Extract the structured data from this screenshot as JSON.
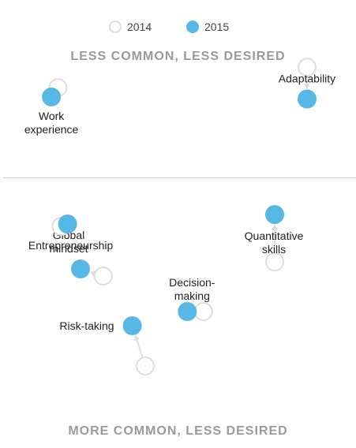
{
  "colors": {
    "y2014_stroke": "#dddddd",
    "y2015_fill": "#57b8e6",
    "connector": "#dddddd"
  },
  "legend": {
    "items": [
      {
        "label": "2014"
      },
      {
        "label": "2015"
      }
    ]
  },
  "sections": {
    "top": "LESS COMMON, LESS DESIRED",
    "bottom": "MORE COMMON, LESS DESIRED"
  },
  "chart_data": {
    "type": "scatter",
    "series_names": [
      "2014",
      "2015"
    ],
    "points": [
      {
        "label": [
          "Work",
          "experience"
        ],
        "quadrant": "less common, less desired",
        "y2014": [
          0.13,
          0.24
        ],
        "y2015": [
          0.11,
          0.33
        ]
      },
      {
        "label": [
          "Adaptability"
        ],
        "quadrant": "less common, less desired",
        "y2014": [
          0.9,
          0.04
        ],
        "y2015": [
          0.9,
          0.35
        ]
      },
      {
        "label": [
          "Risk-taking"
        ],
        "quadrant": "more common, less desired",
        "y2014": [
          0.4,
          0.78
        ],
        "y2015": [
          0.36,
          0.61
        ]
      },
      {
        "label": [
          "Decision-",
          "making"
        ],
        "quadrant": "more common, less desired",
        "y2014": [
          0.58,
          0.55
        ],
        "y2015": [
          0.53,
          0.55
        ]
      },
      {
        "label": [
          "Global",
          "mindset"
        ],
        "quadrant": "more common, less desired",
        "y2014": [
          0.27,
          0.4
        ],
        "y2015": [
          0.2,
          0.37
        ]
      },
      {
        "label": [
          "Entrepreneurship"
        ],
        "quadrant": "more common, less desired",
        "y2014": [
          0.14,
          0.19
        ],
        "y2015": [
          0.16,
          0.18
        ]
      },
      {
        "label": [
          "Quantitative",
          "skills"
        ],
        "quadrant": "more common, less desired",
        "y2014": [
          0.8,
          0.34
        ],
        "y2015": [
          0.8,
          0.14
        ]
      }
    ]
  }
}
